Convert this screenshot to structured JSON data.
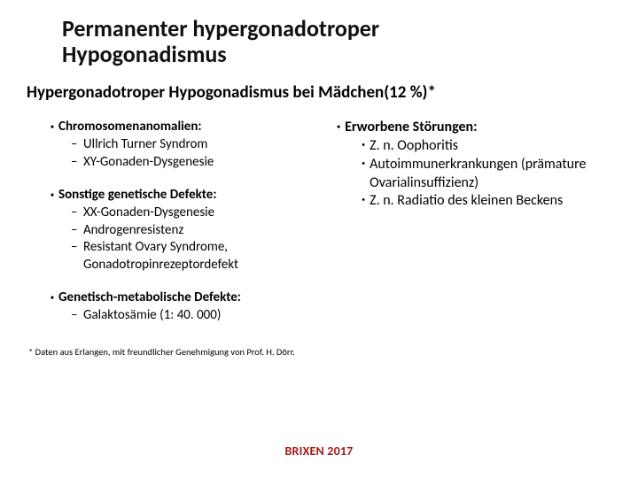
{
  "title_line1": "Permanenter hypergonadotroper",
  "title_line2": "Hypogonadismus",
  "subtitle": "Hypergonadotroper Hypogonadismus bei Mädchen(12 %)*",
  "left": {
    "s1": {
      "head": "Chromosomenanomalien:",
      "items": [
        "Ullrich Turner Syndrom",
        "XY-Gonaden-Dysgenesie"
      ]
    },
    "s2": {
      "head": "Sonstige genetische Defekte:",
      "items": [
        "XX-Gonaden-Dysgenesie",
        "Androgenresistenz",
        "Resistant Ovary Syndrome, Gonadotropinrezeptordefekt"
      ]
    },
    "s3": {
      "head": "Genetisch-metabolische Defekte:",
      "items": [
        "Galaktosämie (1: 40. 000)"
      ]
    }
  },
  "right": {
    "head": "Erworbene Störungen:",
    "items": [
      "Z. n. Oophoritis",
      "Autoimmunerkrankungen (prämature Ovarialinsuffizienz)",
      "Z. n. Radiatio des kleinen Beckens"
    ]
  },
  "footnote": "* Daten aus Erlangen, mit freundlicher Genehmigung von Prof. H. Dörr.",
  "footer": "BRIXEN 2017",
  "colors": {
    "title": "#111111",
    "text": "#000000",
    "brand": "#a31919",
    "bg": "#ffffff"
  },
  "fonts": {
    "title_size": 26,
    "subtitle_size": 19,
    "body_size": 15,
    "right_size": 16,
    "footnote_size": 10.5,
    "footer_size": 14
  }
}
